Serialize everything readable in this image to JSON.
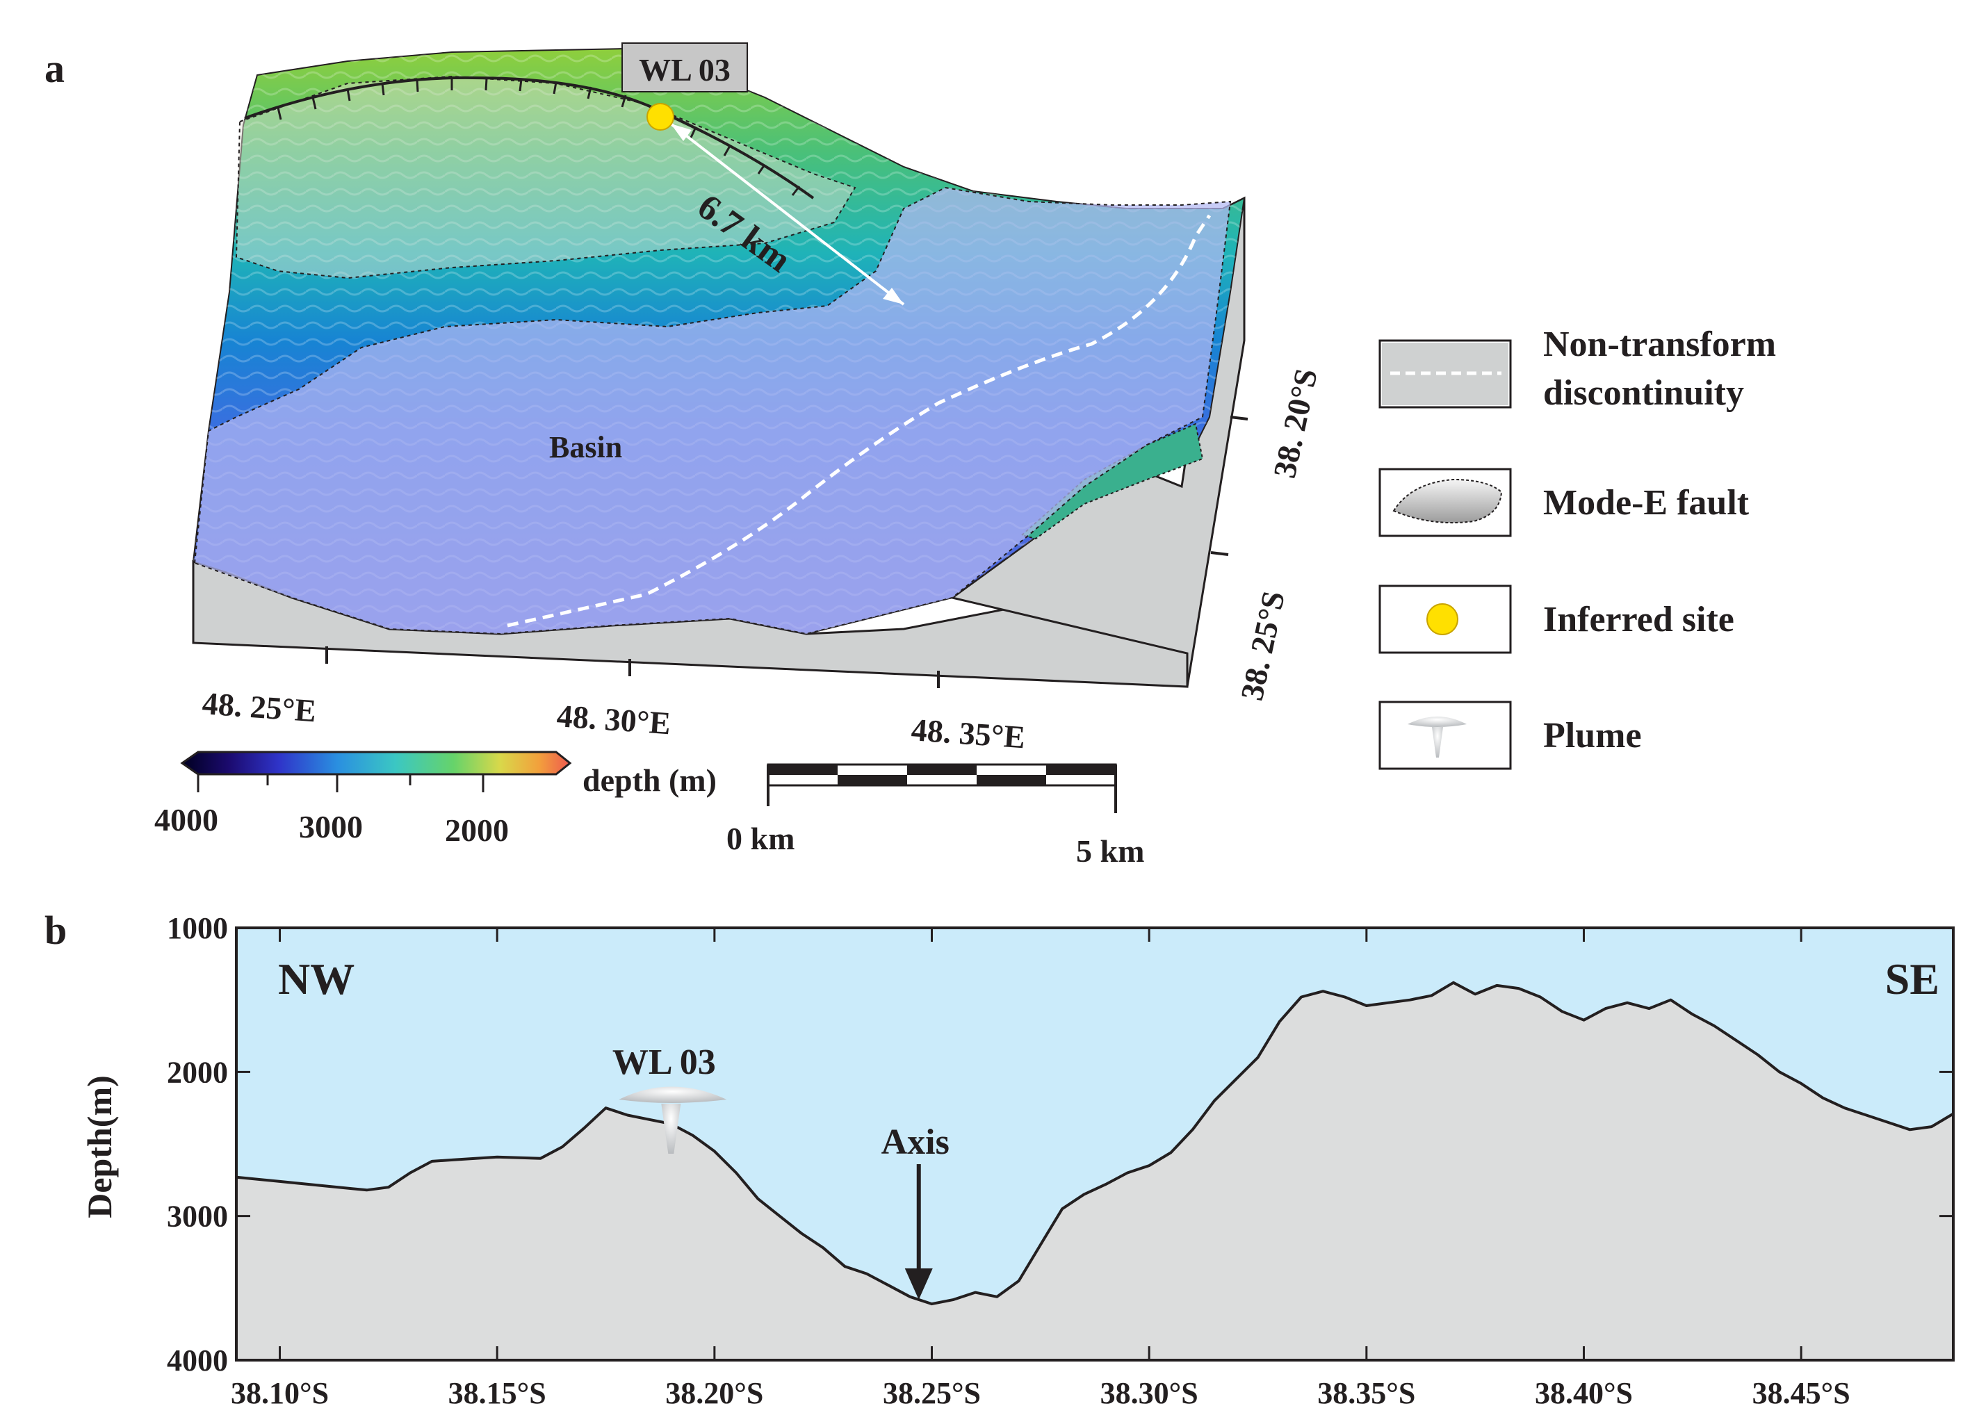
{
  "panel_a": {
    "label": "a",
    "site_label": "WL 03",
    "distance_label": "6.7 km",
    "basin_label": "Basin",
    "lon_ticks": [
      "48. 25°E",
      "48. 30°E",
      "48. 35°E"
    ],
    "lat_ticks": [
      "38. 20°S",
      "38. 25°S"
    ],
    "colorbar": {
      "title": "depth (m)",
      "ticks": [
        "4000",
        "3000",
        "2000"
      ],
      "colors": [
        "#1b0a6e",
        "#2f34c9",
        "#2a8fe0",
        "#3bc7c3",
        "#66d36a",
        "#d9d84a",
        "#f2a03c",
        "#ef5a4f"
      ]
    },
    "scale_bar": {
      "start": "0 km",
      "end": "5 km",
      "segments": 5
    },
    "colors": {
      "water_overlay": "#a9b4ef",
      "block": "#cdcfcf",
      "nd_line": "#ffffff",
      "site": "#ffe000"
    }
  },
  "legend": {
    "items": [
      {
        "label_lines": [
          "Non-transform",
          "discontinuity"
        ],
        "icon": "dashed-line-icon"
      },
      {
        "label_lines": [
          "Mode-E fault"
        ],
        "icon": "fault-surface-icon"
      },
      {
        "label_lines": [
          "Inferred site"
        ],
        "icon": "yellow-dot-icon"
      },
      {
        "label_lines": [
          "Plume"
        ],
        "icon": "plume-icon"
      }
    ]
  },
  "panel_b": {
    "label": "b",
    "left_label": "NW",
    "right_label": "SE",
    "site_label": "WL 03",
    "axis_label": "Axis",
    "ylabel": "Depth(m)",
    "colors": {
      "water": "#cbebfa",
      "ground": "#dcdddd",
      "line": "#231f20"
    }
  },
  "chart_data": {
    "type": "area",
    "title": "",
    "xlabel": "",
    "ylabel": "Depth(m)",
    "x_tick_labels": [
      "38.10°S",
      "38.15°S",
      "38.20°S",
      "38.25°S",
      "38.30°S",
      "38.35°S",
      "38.40°S",
      "38.45°S"
    ],
    "y_tick_labels": [
      "1000",
      "2000",
      "3000",
      "4000"
    ],
    "x_ticks": [
      38.1,
      38.15,
      38.2,
      38.25,
      38.3,
      38.35,
      38.4,
      38.45
    ],
    "y_ticks": [
      1000,
      2000,
      3000,
      4000
    ],
    "xlim": [
      38.09,
      38.485
    ],
    "ylim": [
      4000,
      1000
    ],
    "y_inverted": true,
    "series": [
      {
        "x": [
          38.09,
          38.1,
          38.11,
          38.12,
          38.125,
          38.13,
          38.135,
          38.14,
          38.15,
          38.16,
          38.165,
          38.17,
          38.175,
          38.18,
          38.185,
          38.19,
          38.195,
          38.2,
          38.205,
          38.21,
          38.215,
          38.22,
          38.225,
          38.23,
          38.235,
          38.24,
          38.245,
          38.25,
          38.255,
          38.26,
          38.265,
          38.27,
          38.275,
          38.28,
          38.285,
          38.29,
          38.295,
          38.3,
          38.305,
          38.31,
          38.315,
          38.32,
          38.325,
          38.33,
          38.335,
          38.34,
          38.345,
          38.35,
          38.355,
          38.36,
          38.365,
          38.37,
          38.375,
          38.38,
          38.385,
          38.39,
          38.395,
          38.4,
          38.405,
          38.41,
          38.415,
          38.42,
          38.425,
          38.43,
          38.435,
          38.44,
          38.445,
          38.45,
          38.455,
          38.46,
          38.465,
          38.47,
          38.475,
          38.48,
          38.485
        ],
        "y": [
          2730,
          2760,
          2790,
          2820,
          2800,
          2700,
          2620,
          2610,
          2590,
          2600,
          2520,
          2390,
          2250,
          2300,
          2330,
          2360,
          2440,
          2550,
          2700,
          2880,
          3000,
          3120,
          3220,
          3350,
          3400,
          3480,
          3560,
          3610,
          3580,
          3530,
          3560,
          3450,
          3200,
          2950,
          2850,
          2780,
          2700,
          2650,
          2560,
          2400,
          2200,
          2050,
          1900,
          1650,
          1480,
          1440,
          1480,
          1540,
          1520,
          1500,
          1470,
          1380,
          1460,
          1400,
          1420,
          1480,
          1580,
          1640,
          1560,
          1520,
          1560,
          1500,
          1600,
          1680,
          1780,
          1880,
          2000,
          2080,
          2180,
          2250,
          2300,
          2350,
          2400,
          2380,
          2290
        ]
      }
    ],
    "annotations": [
      {
        "text": "WL 03",
        "x": 38.19
      },
      {
        "text": "Axis",
        "x": 38.247
      }
    ]
  }
}
